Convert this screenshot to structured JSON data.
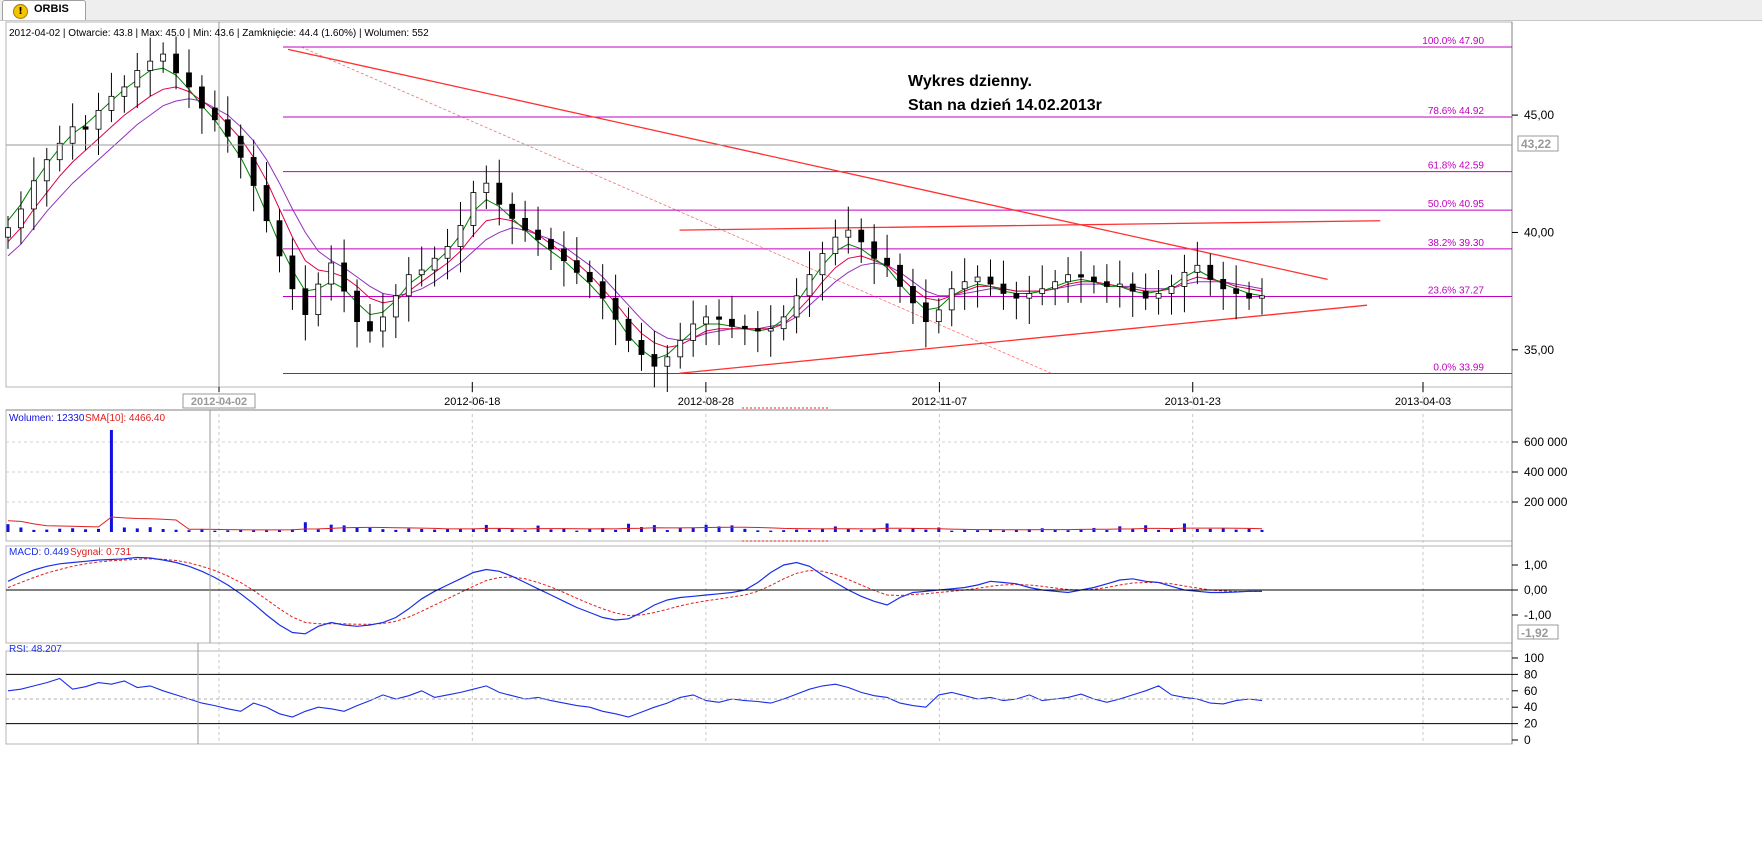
{
  "tab": {
    "title": "ORBIS",
    "icon": "warning-icon"
  },
  "info_line": "2012-04-02 | Otwarcie: 43.8 | Max: 45.0 | Min: 43.6 | Zamknięcie: 44.4 (1.60%) | Wolumen: 552",
  "annotation": {
    "line1": "Wykres dzienny.",
    "line2": "Stan na dzień 14.02.2013r"
  },
  "colors": {
    "fib": "#c000c0",
    "trend": "#ff3030",
    "sma_short": "#008000",
    "sma_mid": "#e0004a",
    "sma_long": "#9030c0",
    "volume": "#1010e0",
    "macd": "#1a2ee8",
    "signal": "#e02020",
    "rsi": "#1a2ee8"
  },
  "chart_data": [
    {
      "type": "candlestick",
      "x_dates": [
        "2012-04-02",
        "2012-06-18",
        "2012-08-28",
        "2012-11-07",
        "2013-01-23",
        "2013-04-03"
      ],
      "x_labels": [
        "2012-04-02",
        "2012-06-18",
        "2012-08-28",
        "2012-11-07",
        "2013-01-23",
        "2013-04-03"
      ],
      "y_ticks": [
        "45,00",
        "40,00",
        "35,00"
      ],
      "ylim": [
        33.5,
        48.2
      ],
      "current_price_label": "43,22",
      "fibonacci": [
        {
          "label": "100.0% 47.90",
          "value": 47.9
        },
        {
          "label": "78.6% 44.92",
          "value": 44.92
        },
        {
          "label": "61.8% 42.59",
          "value": 42.59
        },
        {
          "label": "50.0% 40.95",
          "value": 40.95
        },
        {
          "label": "38.2% 39.30",
          "value": 39.3
        },
        {
          "label": "23.6% 37.27",
          "value": 37.27
        },
        {
          "label": "0.0% 33.99",
          "value": 33.99
        }
      ],
      "trendlines": [
        {
          "from": [
            "2012-04-23",
            47.8
          ],
          "to": [
            "2013-03-05",
            38.0
          ]
        },
        {
          "from": [
            "2012-08-20",
            40.1
          ],
          "to": [
            "2013-03-21",
            40.5
          ]
        },
        {
          "from": [
            "2012-08-20",
            34.0
          ],
          "to": [
            "2013-03-17",
            36.9
          ]
        },
        {
          "from": [
            "2012-04-27",
            47.9
          ],
          "to": [
            "2012-12-11",
            34.0
          ],
          "dashed": true
        }
      ],
      "closes": [
        40.2,
        41.0,
        42.2,
        43.1,
        43.8,
        44.5,
        44.4,
        45.2,
        45.8,
        46.2,
        46.9,
        47.3,
        47.6,
        46.8,
        46.2,
        45.3,
        44.8,
        44.1,
        43.2,
        42.0,
        40.5,
        39.0,
        37.6,
        36.5,
        37.8,
        38.7,
        37.5,
        36.2,
        35.8,
        36.4,
        37.3,
        38.2,
        38.4,
        38.9,
        39.4,
        40.3,
        41.7,
        42.1,
        41.2,
        40.6,
        40.1,
        39.7,
        39.3,
        38.8,
        38.3,
        37.9,
        37.2,
        36.3,
        35.4,
        34.8,
        34.3,
        34.7,
        35.4,
        36.1,
        36.4,
        36.3,
        36.0,
        35.9,
        35.8,
        35.9,
        36.4,
        37.3,
        38.2,
        39.1,
        39.8,
        40.1,
        39.6,
        38.9,
        38.6,
        37.7,
        37.0,
        36.2,
        36.7,
        37.6,
        37.9,
        38.1,
        37.8,
        37.4,
        37.2,
        37.4,
        37.6,
        37.9,
        38.2,
        38.1,
        37.9,
        37.7,
        37.8,
        37.5,
        37.2,
        37.4,
        37.7,
        38.3,
        38.6,
        38.0,
        37.6,
        37.4,
        37.2,
        37.3
      ],
      "sma_short": [
        40.5,
        41.2,
        42.1,
        42.9,
        43.6,
        44.2,
        44.6,
        45.1,
        45.6,
        46.1,
        46.5,
        46.9,
        47.0,
        46.7,
        46.1,
        45.4,
        44.8,
        44.0,
        43.2,
        42.1,
        40.8,
        39.5,
        38.4,
        37.5,
        37.6,
        37.9,
        37.6,
        37.0,
        36.5,
        36.6,
        37.1,
        37.8,
        38.2,
        38.7,
        39.2,
        39.9,
        40.9,
        41.4,
        41.1,
        40.6,
        40.1,
        39.6,
        39.2,
        38.8,
        38.3,
        37.8,
        37.2,
        36.4,
        35.6,
        35.0,
        34.6,
        34.8,
        35.3,
        35.8,
        36.1,
        36.1,
        36.0,
        35.9,
        35.8,
        35.9,
        36.3,
        37.0,
        37.8,
        38.6,
        39.2,
        39.5,
        39.3,
        38.9,
        38.5,
        37.8,
        37.2,
        36.7,
        36.8,
        37.3,
        37.6,
        37.8,
        37.7,
        37.5,
        37.4,
        37.4,
        37.5,
        37.7,
        37.9,
        38.0,
        37.9,
        37.7,
        37.7,
        37.5,
        37.4,
        37.5,
        37.7,
        38.1,
        38.4,
        38.1,
        37.8,
        37.6,
        37.4,
        37.3
      ],
      "sma_mid": [
        39.6,
        40.2,
        41.0,
        41.7,
        42.4,
        43.0,
        43.5,
        44.0,
        44.5,
        45.0,
        45.4,
        45.8,
        46.1,
        46.2,
        46.0,
        45.6,
        45.2,
        44.6,
        44.0,
        43.2,
        42.2,
        41.0,
        39.8,
        38.8,
        38.4,
        38.3,
        38.1,
        37.7,
        37.2,
        37.0,
        37.1,
        37.5,
        37.9,
        38.3,
        38.7,
        39.2,
        39.9,
        40.5,
        40.6,
        40.5,
        40.2,
        39.9,
        39.5,
        39.1,
        38.7,
        38.2,
        37.6,
        37.0,
        36.3,
        35.7,
        35.3,
        35.1,
        35.2,
        35.5,
        35.8,
        35.9,
        35.9,
        35.9,
        35.9,
        35.9,
        36.1,
        36.6,
        37.2,
        37.9,
        38.5,
        38.9,
        39.0,
        38.8,
        38.6,
        38.1,
        37.6,
        37.2,
        37.1,
        37.3,
        37.5,
        37.7,
        37.7,
        37.6,
        37.5,
        37.5,
        37.5,
        37.6,
        37.8,
        37.9,
        37.9,
        37.8,
        37.7,
        37.6,
        37.5,
        37.5,
        37.6,
        37.9,
        38.1,
        38.0,
        37.9,
        37.7,
        37.6,
        37.5
      ],
      "sma_long": [
        39.0,
        39.5,
        40.2,
        40.9,
        41.5,
        42.1,
        42.6,
        43.1,
        43.6,
        44.1,
        44.6,
        45.0,
        45.4,
        45.6,
        45.7,
        45.6,
        45.3,
        45.0,
        44.5,
        43.9,
        43.1,
        42.1,
        41.0,
        40.0,
        39.2,
        38.8,
        38.5,
        38.1,
        37.7,
        37.4,
        37.3,
        37.4,
        37.6,
        37.9,
        38.3,
        38.7,
        39.2,
        39.7,
        40.0,
        40.2,
        40.1,
        39.9,
        39.7,
        39.4,
        39.0,
        38.6,
        38.1,
        37.5,
        36.9,
        36.3,
        35.8,
        35.5,
        35.4,
        35.5,
        35.7,
        35.8,
        35.9,
        35.9,
        35.9,
        36.0,
        36.1,
        36.4,
        36.9,
        37.4,
        37.9,
        38.3,
        38.6,
        38.7,
        38.6,
        38.3,
        37.9,
        37.5,
        37.3,
        37.3,
        37.4,
        37.5,
        37.6,
        37.6,
        37.5,
        37.5,
        37.5,
        37.6,
        37.7,
        37.8,
        37.8,
        37.8,
        37.7,
        37.7,
        37.6,
        37.6,
        37.6,
        37.8,
        37.9,
        37.9,
        37.9,
        37.8,
        37.7,
        37.6
      ]
    },
    {
      "type": "bar",
      "title": "Wolumen: 12330",
      "sma_label": "SMA[10]: 4466.40",
      "y_ticks": [
        "600 000",
        "400 000",
        "200 000"
      ],
      "ylim": [
        0,
        700000
      ],
      "values": [
        52000,
        30000,
        14000,
        16000,
        22000,
        25000,
        18000,
        21000,
        680000,
        30000,
        24000,
        32000,
        20000,
        15000,
        12000,
        18000,
        9000,
        11000,
        14000,
        11000,
        10000,
        13000,
        18000,
        65000,
        17000,
        49000,
        44000,
        31000,
        28000,
        19000,
        14000,
        23000,
        20000,
        16000,
        20000,
        23000,
        18000,
        47000,
        26000,
        18000,
        12000,
        43000,
        17000,
        24000,
        9000,
        21000,
        26000,
        14000,
        55000,
        33000,
        46000,
        13000,
        26000,
        30000,
        48000,
        37000,
        44000,
        21000,
        11000,
        9000,
        12000,
        16000,
        14000,
        24000,
        37000,
        22000,
        14000,
        21000,
        57000,
        19000,
        25000,
        16000,
        30000,
        9000,
        13000,
        12000,
        18000,
        11000,
        15000,
        19000,
        25000,
        13000,
        12000,
        16000,
        27000,
        13000,
        38000,
        24000,
        45000,
        14000,
        19000,
        57000,
        20000,
        21000,
        26000,
        16000,
        22000,
        14000
      ],
      "sma": [
        75000,
        71000,
        54000,
        42000,
        40000,
        38000,
        36000,
        34000,
        100000,
        94000,
        90000,
        88000,
        85000,
        80000,
        18000,
        18000,
        17000,
        16000,
        15000,
        14000,
        14000,
        14000,
        15000,
        20000,
        21000,
        24000,
        28000,
        30000,
        31000,
        30000,
        28000,
        27000,
        26000,
        24000,
        21000,
        21000,
        21000,
        24000,
        24000,
        23000,
        21000,
        23000,
        23000,
        23000,
        22000,
        21000,
        22000,
        21000,
        24000,
        25000,
        28000,
        27000,
        27000,
        28000,
        30000,
        31000,
        32000,
        32000,
        30000,
        27000,
        24000,
        23000,
        22000,
        21000,
        22000,
        22000,
        21000,
        21000,
        25000,
        25000,
        24000,
        23000,
        22000,
        19000,
        17000,
        16000,
        16000,
        15000,
        15000,
        15000,
        16000,
        16000,
        16000,
        17000,
        18000,
        18000,
        20000,
        21000,
        24000,
        24000,
        23000,
        26000,
        26000,
        26000,
        26000,
        25000,
        24000,
        22000
      ]
    },
    {
      "type": "line",
      "title": "MACD: 0.449",
      "signal_label": "Sygnał: 0.731",
      "y_ticks": [
        "1,00",
        "0,00",
        "-1,00"
      ],
      "current_label": "-1,92",
      "ylim": [
        -2.0,
        1.6
      ],
      "series": [
        {
          "name": "MACD",
          "values": [
            0.35,
            0.6,
            0.8,
            0.95,
            1.05,
            1.1,
            1.15,
            1.2,
            1.22,
            1.25,
            1.3,
            1.28,
            1.2,
            1.1,
            0.95,
            0.75,
            0.5,
            0.2,
            -0.15,
            -0.55,
            -1.0,
            -1.4,
            -1.7,
            -1.75,
            -1.45,
            -1.3,
            -1.4,
            -1.45,
            -1.4,
            -1.3,
            -1.1,
            -0.75,
            -0.35,
            -0.05,
            0.2,
            0.45,
            0.7,
            0.82,
            0.75,
            0.55,
            0.3,
            0.05,
            -0.2,
            -0.45,
            -0.7,
            -0.9,
            -1.1,
            -1.2,
            -1.15,
            -0.9,
            -0.6,
            -0.4,
            -0.3,
            -0.25,
            -0.2,
            -0.15,
            -0.1,
            0.0,
            0.3,
            0.7,
            1.0,
            1.1,
            0.95,
            0.6,
            0.3,
            0.0,
            -0.25,
            -0.45,
            -0.6,
            -0.3,
            -0.1,
            -0.05,
            0.0,
            0.05,
            0.1,
            0.2,
            0.35,
            0.3,
            0.25,
            0.1,
            0.0,
            -0.05,
            -0.1,
            0.0,
            0.1,
            0.25,
            0.4,
            0.45,
            0.35,
            0.3,
            0.15,
            0.0,
            -0.05,
            -0.1,
            -0.1,
            -0.08,
            -0.05,
            -0.05
          ]
        },
        {
          "name": "Sygnał",
          "values": [
            0.1,
            0.3,
            0.5,
            0.68,
            0.82,
            0.95,
            1.05,
            1.12,
            1.17,
            1.2,
            1.23,
            1.25,
            1.23,
            1.18,
            1.09,
            0.95,
            0.78,
            0.56,
            0.3,
            -0.02,
            -0.38,
            -0.75,
            -1.08,
            -1.3,
            -1.35,
            -1.35,
            -1.35,
            -1.37,
            -1.37,
            -1.34,
            -1.25,
            -1.08,
            -0.85,
            -0.6,
            -0.35,
            -0.1,
            0.15,
            0.38,
            0.5,
            0.52,
            0.45,
            0.3,
            0.12,
            -0.1,
            -0.33,
            -0.55,
            -0.75,
            -0.92,
            -1.02,
            -1.0,
            -0.9,
            -0.77,
            -0.63,
            -0.52,
            -0.43,
            -0.36,
            -0.28,
            -0.2,
            -0.05,
            0.18,
            0.45,
            0.67,
            0.78,
            0.75,
            0.62,
            0.42,
            0.2,
            -0.02,
            -0.2,
            -0.22,
            -0.18,
            -0.15,
            -0.1,
            -0.05,
            0.0,
            0.07,
            0.15,
            0.2,
            0.22,
            0.2,
            0.15,
            0.08,
            0.02,
            0.0,
            0.03,
            0.1,
            0.2,
            0.28,
            0.3,
            0.3,
            0.25,
            0.16,
            0.08,
            0.0,
            -0.04,
            -0.06,
            -0.06,
            -0.06
          ]
        }
      ]
    },
    {
      "type": "line",
      "title": "RSI: 48.207",
      "y_ticks": [
        "100",
        "80",
        "60",
        "40",
        "20",
        "0"
      ],
      "ylim": [
        0,
        100
      ],
      "levels": [
        80,
        50,
        20
      ],
      "series": [
        {
          "name": "RSI",
          "values": [
            60,
            62,
            66,
            70,
            75,
            62,
            65,
            70,
            68,
            72,
            64,
            66,
            60,
            55,
            50,
            45,
            42,
            38,
            35,
            45,
            40,
            32,
            28,
            35,
            40,
            38,
            35,
            42,
            48,
            55,
            50,
            54,
            60,
            52,
            55,
            58,
            62,
            66,
            58,
            54,
            50,
            52,
            48,
            45,
            42,
            40,
            35,
            32,
            28,
            34,
            40,
            45,
            52,
            55,
            48,
            46,
            50,
            48,
            47,
            45,
            50,
            56,
            62,
            66,
            68,
            64,
            58,
            54,
            52,
            45,
            42,
            40,
            55,
            58,
            54,
            50,
            52,
            48,
            50,
            55,
            48,
            50,
            52,
            56,
            50,
            46,
            50,
            55,
            60,
            66,
            55,
            52,
            50,
            45,
            44,
            48,
            50,
            48
          ]
        }
      ]
    }
  ]
}
